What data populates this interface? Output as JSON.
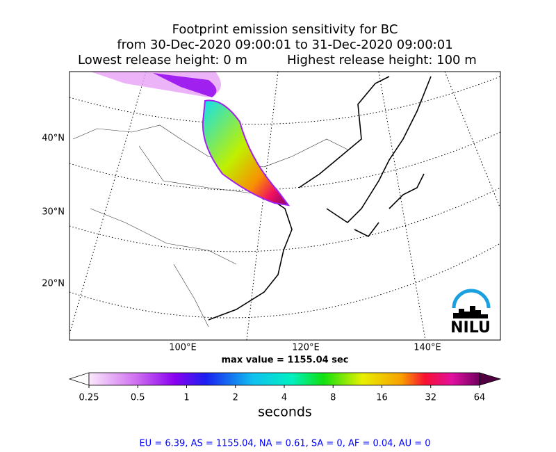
{
  "title": [
    "Footprint emission sensitivity for BC",
    "from 30-Dec-2020 09:00:01 to 31-Dec-2020 09:00:01"
  ],
  "release": {
    "lowest": "Lowest release height: 0 m",
    "highest": "Highest release height: 100 m"
  },
  "map": {
    "lat_labels": [
      "40°N",
      "30°N",
      "20°N"
    ],
    "lon_labels": [
      "100°E",
      "120°E",
      "140°E"
    ],
    "logo": "NILU"
  },
  "max_value": "max value = 1155.04 sec",
  "colorbar": {
    "lim": [
      0.25,
      64
    ],
    "ticks": [
      0.25,
      0.5,
      1,
      2,
      4,
      8,
      16,
      32,
      64
    ],
    "log": true,
    "label": "seconds"
  },
  "footer": "EU = 6.39,  AS = 1155.04,  NA = 0.61,  SA = 0,  AF = 0.04,  AU = 0"
}
